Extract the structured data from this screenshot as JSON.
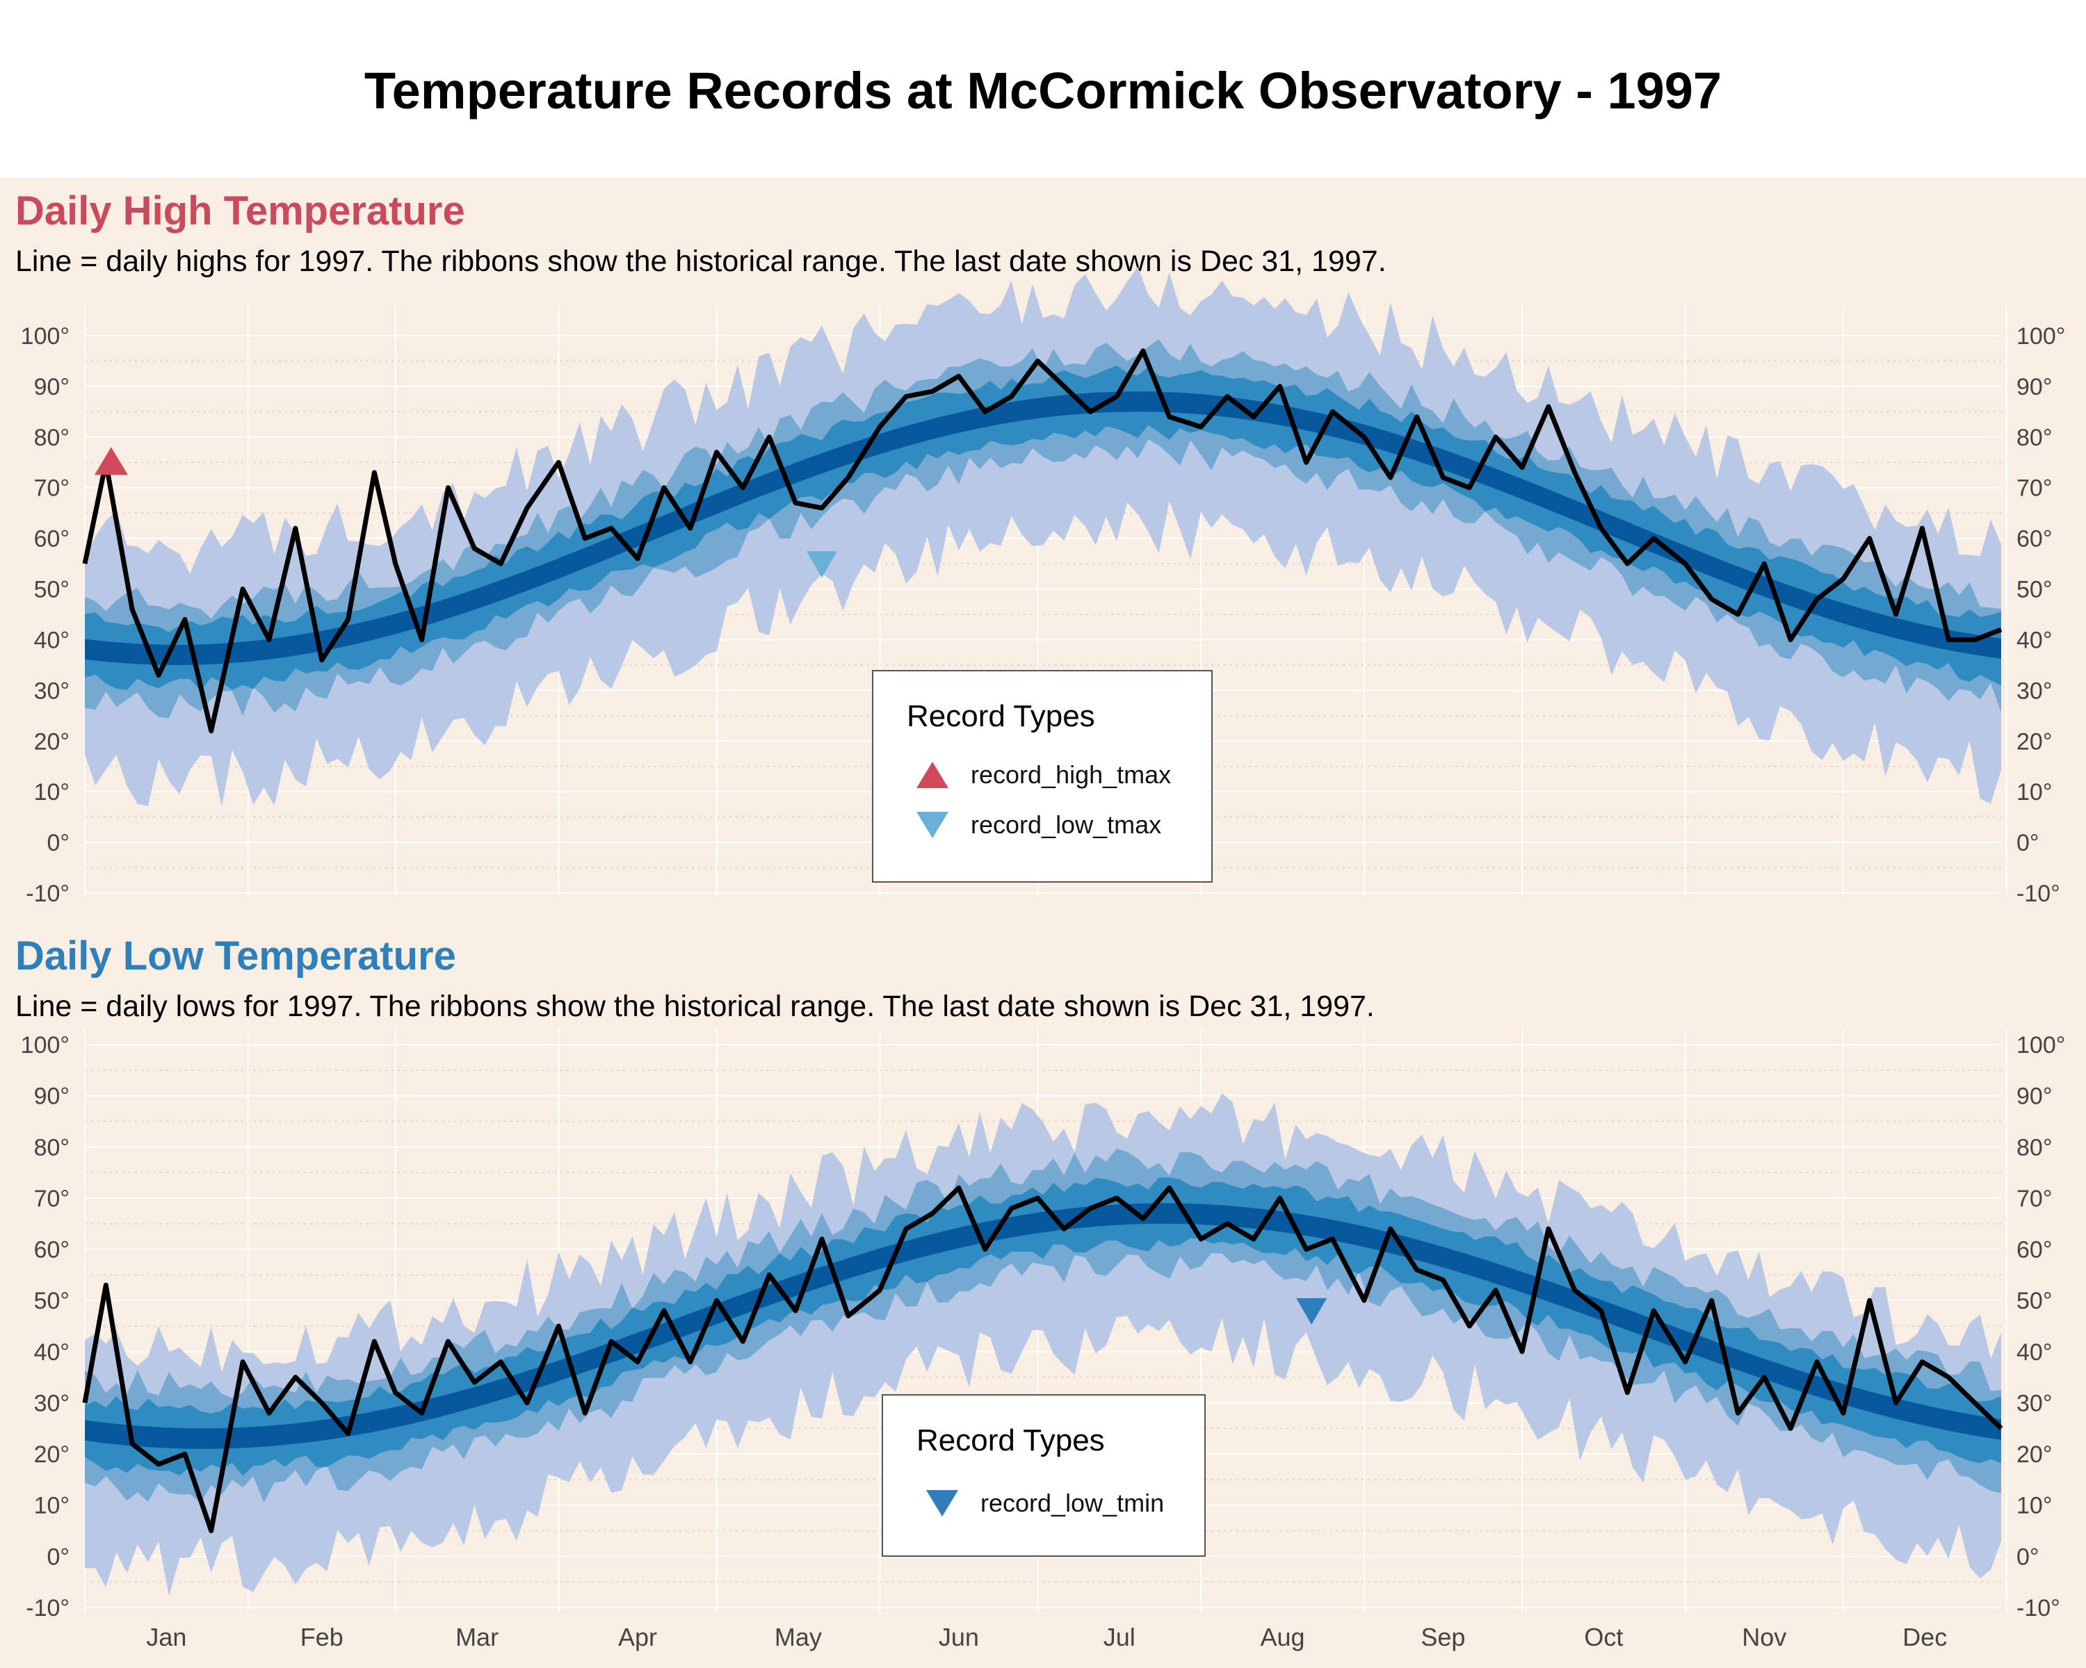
{
  "title": "Temperature Records at McCormick Observatory - 1997",
  "colors": {
    "background": "#f9eee4",
    "high_title": "#c94a5b",
    "low_title": "#2f7fba",
    "ribbon_record": "#b9c8e4",
    "ribbon_outer": "#75a9d1",
    "ribbon_mid": "#2f8bc0",
    "ribbon_inner": "#08589e",
    "line": "#000000",
    "record_high_marker": "#d1495b",
    "record_low_tmax_marker": "#69b0d8",
    "record_low_tmin_marker": "#2e7ebb"
  },
  "high_panel": {
    "title": "Daily High Temperature",
    "subtitle": "Line = daily highs for 1997. The ribbons show the historical range. The last date shown is Dec 31, 1997.",
    "legend": {
      "title": "Record Types",
      "items": [
        {
          "label": "record_high_tmax",
          "marker": "triangle-up-icon",
          "color": "#d1495b"
        },
        {
          "label": "record_low_tmax",
          "marker": "triangle-down-icon",
          "color": "#69b0d8"
        }
      ]
    }
  },
  "low_panel": {
    "title": "Daily Low Temperature",
    "subtitle": "Line = daily lows for 1997. The ribbons show the historical range. The last date shown is Dec 31, 1997.",
    "legend": {
      "title": "Record Types",
      "items": [
        {
          "label": "record_low_tmin",
          "marker": "triangle-down-icon",
          "color": "#2e7ebb"
        }
      ]
    }
  },
  "chart_data": [
    {
      "type": "line",
      "panel": "high",
      "title": "Daily High Temperature",
      "x_range": [
        "1997-01-01",
        "1997-12-31"
      ],
      "ylim": [
        -10,
        105
      ],
      "yticks": [
        "100°",
        "90°",
        "80°",
        "70°",
        "60°",
        "50°",
        "40°",
        "30°",
        "20°",
        "10°",
        "0°",
        "-10°"
      ],
      "month_labels": [
        "Jan",
        "Feb",
        "Mar",
        "Apr",
        "May",
        "Jun",
        "Jul",
        "Aug",
        "Sep",
        "Oct",
        "Nov",
        "Dec"
      ],
      "normal_curve": {
        "mean": 62,
        "amplitude": 25,
        "peak_day": 200
      },
      "ribbons_halfwidth": {
        "inner": 2,
        "mid": 6,
        "outer": 10,
        "record_high": 22,
        "record_low": 25
      },
      "series": {
        "x": [
          "1997-01-01",
          "1997-01-05",
          "1997-01-10",
          "1997-01-15",
          "1997-01-20",
          "1997-01-25",
          "1997-01-31",
          "1997-02-05",
          "1997-02-10",
          "1997-02-15",
          "1997-02-20",
          "1997-02-25",
          "1997-03-01",
          "1997-03-06",
          "1997-03-11",
          "1997-03-16",
          "1997-03-21",
          "1997-03-26",
          "1997-04-01",
          "1997-04-06",
          "1997-04-11",
          "1997-04-16",
          "1997-04-21",
          "1997-04-26",
          "1997-05-01",
          "1997-05-06",
          "1997-05-11",
          "1997-05-16",
          "1997-05-21",
          "1997-05-26",
          "1997-06-01",
          "1997-06-06",
          "1997-06-11",
          "1997-06-16",
          "1997-06-21",
          "1997-06-26",
          "1997-07-01",
          "1997-07-06",
          "1997-07-11",
          "1997-07-16",
          "1997-07-21",
          "1997-07-26",
          "1997-08-01",
          "1997-08-06",
          "1997-08-11",
          "1997-08-16",
          "1997-08-21",
          "1997-08-26",
          "1997-09-01",
          "1997-09-06",
          "1997-09-11",
          "1997-09-16",
          "1997-09-21",
          "1997-09-26",
          "1997-10-01",
          "1997-10-06",
          "1997-10-11",
          "1997-10-16",
          "1997-10-21",
          "1997-10-26",
          "1997-11-01",
          "1997-11-06",
          "1997-11-11",
          "1997-11-16",
          "1997-11-21",
          "1997-11-26",
          "1997-12-01",
          "1997-12-06",
          "1997-12-11",
          "1997-12-16",
          "1997-12-21",
          "1997-12-26",
          "1997-12-31"
        ],
        "values": [
          55,
          75,
          46,
          33,
          44,
          22,
          50,
          40,
          62,
          36,
          44,
          73,
          55,
          40,
          70,
          58,
          55,
          66,
          75,
          60,
          62,
          56,
          70,
          62,
          77,
          70,
          80,
          67,
          66,
          72,
          82,
          88,
          89,
          92,
          85,
          88,
          95,
          90,
          85,
          88,
          97,
          84,
          82,
          88,
          84,
          90,
          75,
          85,
          80,
          72,
          84,
          72,
          70,
          80,
          74,
          86,
          73,
          62,
          55,
          60,
          55,
          48,
          45,
          55,
          40,
          48,
          52,
          60,
          45,
          62,
          40,
          40,
          42
        ]
      },
      "markers": [
        {
          "type": "record_high_tmax",
          "x": "1997-01-06",
          "y": 75
        },
        {
          "type": "record_low_tmax",
          "x": "1997-05-21",
          "y": 55
        }
      ]
    },
    {
      "type": "line",
      "panel": "low",
      "title": "Daily Low Temperature",
      "x_range": [
        "1997-01-01",
        "1997-12-31"
      ],
      "ylim": [
        -10,
        105
      ],
      "yticks": [
        "100°",
        "90°",
        "80°",
        "70°",
        "60°",
        "50°",
        "40°",
        "30°",
        "20°",
        "10°",
        "0°",
        "-10°"
      ],
      "month_labels": [
        "Jan",
        "Feb",
        "Mar",
        "Apr",
        "May",
        "Jun",
        "Jul",
        "Aug",
        "Sep",
        "Oct",
        "Nov",
        "Dec"
      ],
      "normal_curve": {
        "mean": 45,
        "amplitude": 22,
        "peak_day": 205
      },
      "ribbons_halfwidth": {
        "inner": 2,
        "mid": 6,
        "outer": 10,
        "record_high": 18,
        "record_low": 25
      },
      "series": {
        "x": [
          "1997-01-01",
          "1997-01-05",
          "1997-01-10",
          "1997-01-15",
          "1997-01-20",
          "1997-01-25",
          "1997-01-31",
          "1997-02-05",
          "1997-02-10",
          "1997-02-15",
          "1997-02-20",
          "1997-02-25",
          "1997-03-01",
          "1997-03-06",
          "1997-03-11",
          "1997-03-16",
          "1997-03-21",
          "1997-03-26",
          "1997-04-01",
          "1997-04-06",
          "1997-04-11",
          "1997-04-16",
          "1997-04-21",
          "1997-04-26",
          "1997-05-01",
          "1997-05-06",
          "1997-05-11",
          "1997-05-16",
          "1997-05-21",
          "1997-05-26",
          "1997-06-01",
          "1997-06-06",
          "1997-06-11",
          "1997-06-16",
          "1997-06-21",
          "1997-06-26",
          "1997-07-01",
          "1997-07-06",
          "1997-07-11",
          "1997-07-16",
          "1997-07-21",
          "1997-07-26",
          "1997-08-01",
          "1997-08-06",
          "1997-08-11",
          "1997-08-16",
          "1997-08-21",
          "1997-08-26",
          "1997-09-01",
          "1997-09-06",
          "1997-09-11",
          "1997-09-16",
          "1997-09-21",
          "1997-09-26",
          "1997-10-01",
          "1997-10-06",
          "1997-10-11",
          "1997-10-16",
          "1997-10-21",
          "1997-10-26",
          "1997-11-01",
          "1997-11-06",
          "1997-11-11",
          "1997-11-16",
          "1997-11-21",
          "1997-11-26",
          "1997-12-01",
          "1997-12-06",
          "1997-12-11",
          "1997-12-16",
          "1997-12-21",
          "1997-12-26",
          "1997-12-31"
        ],
        "values": [
          30,
          53,
          22,
          18,
          20,
          5,
          38,
          28,
          35,
          30,
          24,
          42,
          32,
          28,
          42,
          34,
          38,
          30,
          45,
          28,
          42,
          38,
          48,
          38,
          50,
          42,
          55,
          48,
          62,
          47,
          52,
          64,
          67,
          72,
          60,
          68,
          70,
          64,
          68,
          70,
          66,
          72,
          62,
          65,
          62,
          70,
          60,
          62,
          50,
          64,
          56,
          54,
          45,
          52,
          40,
          64,
          52,
          48,
          32,
          48,
          38,
          50,
          28,
          35,
          25,
          38,
          28,
          50,
          30,
          38,
          35,
          30,
          25
        ]
      },
      "markers": [
        {
          "type": "record_low_tmin",
          "x": "1997-08-22",
          "y": 48
        }
      ]
    }
  ]
}
